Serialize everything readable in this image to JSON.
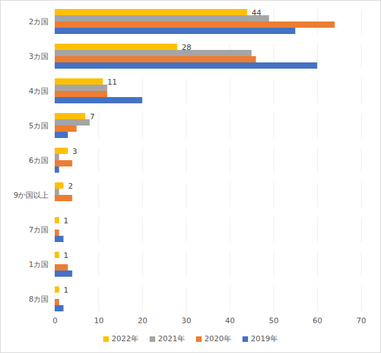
{
  "chart_data": {
    "type": "bar",
    "orientation": "horizontal",
    "categories": [
      "2カ国",
      "3カ国",
      "4カ国",
      "5カ国",
      "6カ国",
      "9か国以上",
      "7カ国",
      "1カ国",
      "8カ国"
    ],
    "series": [
      {
        "name": "2022年",
        "color": "#ffc000",
        "values": [
          44,
          28,
          11,
          7,
          3,
          2,
          1,
          1,
          1
        ],
        "data_labels": true
      },
      {
        "name": "2021年",
        "color": "#a5a5a5",
        "values": [
          49,
          45,
          12,
          8,
          1,
          1,
          0,
          0,
          0
        ]
      },
      {
        "name": "2020年",
        "color": "#ed7d31",
        "values": [
          64,
          46,
          12,
          5,
          4,
          4,
          1,
          3,
          1
        ]
      },
      {
        "name": "2019年",
        "color": "#4472c4",
        "values": [
          55,
          60,
          20,
          3,
          1,
          0,
          2,
          4,
          2
        ]
      }
    ],
    "xlim": [
      0,
      70
    ],
    "xticks": [
      0,
      10,
      20,
      30,
      40,
      50,
      60,
      70
    ],
    "grid": true,
    "legend": "bottom"
  }
}
